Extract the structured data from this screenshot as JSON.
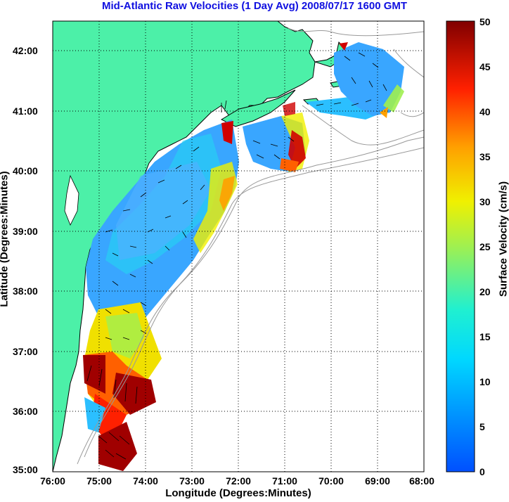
{
  "title": "Mid-Atlantic Raw Velocities (1 Day Avg) 2008/07/17 1600 GMT",
  "axes": {
    "xlabel": "Longitude (Degrees:Minutes)",
    "ylabel": "Latitude (Degrees:Minutes)",
    "x_ticks": [
      "76:00",
      "75:00",
      "74:00",
      "73:00",
      "72:00",
      "71:00",
      "70:00",
      "69:00",
      "68:00"
    ],
    "y_ticks": [
      "42:00",
      "41:00",
      "40:00",
      "39:00",
      "38:00",
      "37:00",
      "36:00",
      "35:00"
    ],
    "xlim": [
      -76,
      -68
    ],
    "ylim": [
      35,
      42.5
    ],
    "grid": "dotted"
  },
  "colorbar": {
    "label": "Surface Velocity (cm/s)",
    "ticks": [
      "50",
      "45",
      "40",
      "35",
      "30",
      "25",
      "20",
      "15",
      "10",
      "5",
      "0"
    ],
    "range": [
      0,
      50
    ],
    "colormap": "jet"
  },
  "colors": {
    "land": "#4cf0a8",
    "coastline": "#000000",
    "bathymetry": "#999999",
    "title": "#1010e0"
  }
}
